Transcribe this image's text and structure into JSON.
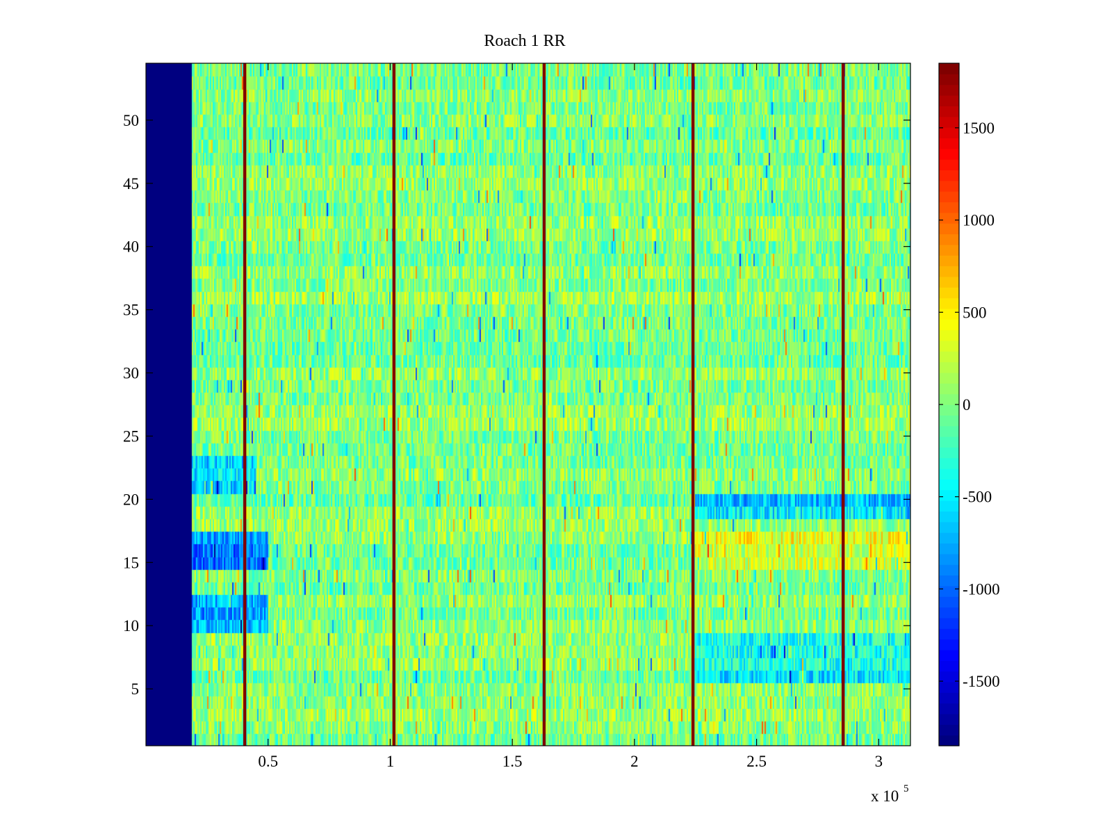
{
  "chart_data": {
    "type": "heatmap",
    "title": "Roach 1 RR",
    "xlabel": "",
    "ylabel": "",
    "x_exponent_label": "x 10",
    "x_exponent_power": "5",
    "xlim": [
      0,
      3.13
    ],
    "ylim": [
      0.5,
      54.5
    ],
    "rows": 54,
    "x_ticks": [
      {
        "value": 0.5,
        "label": "0.5"
      },
      {
        "value": 1,
        "label": "1"
      },
      {
        "value": 1.5,
        "label": "1.5"
      },
      {
        "value": 2,
        "label": "2"
      },
      {
        "value": 2.5,
        "label": "2.5"
      },
      {
        "value": 3,
        "label": "3"
      }
    ],
    "y_ticks": [
      {
        "value": 5,
        "label": "5"
      },
      {
        "value": 10,
        "label": "10"
      },
      {
        "value": 15,
        "label": "15"
      },
      {
        "value": 20,
        "label": "20"
      },
      {
        "value": 25,
        "label": "25"
      },
      {
        "value": 30,
        "label": "30"
      },
      {
        "value": 35,
        "label": "35"
      },
      {
        "value": 40,
        "label": "40"
      },
      {
        "value": 45,
        "label": "45"
      },
      {
        "value": 50,
        "label": "50"
      }
    ],
    "colorbar": {
      "colormap": "jet",
      "clim": [
        -1850,
        1850
      ],
      "ticks": [
        {
          "value": 1500,
          "label": "1500"
        },
        {
          "value": 1000,
          "label": "1000"
        },
        {
          "value": 500,
          "label": "500"
        },
        {
          "value": 0,
          "label": "0"
        },
        {
          "value": -500,
          "label": "-500"
        },
        {
          "value": -1000,
          "label": "-1000"
        },
        {
          "value": -1500,
          "label": "-1500"
        }
      ]
    },
    "blank_region": {
      "x_start": 0,
      "x_end": 0.19,
      "value": -1850
    },
    "spike_columns_x": [
      0.405,
      1.015,
      1.63,
      2.24,
      2.855
    ],
    "spike_value": 1850,
    "typical_value": 0,
    "row_patterns": [
      {
        "rows": [
          15,
          17
        ],
        "x_start": 0.19,
        "x_end": 0.5,
        "value": -900
      },
      {
        "rows": [
          10,
          12
        ],
        "x_start": 0.19,
        "x_end": 0.5,
        "value": -800
      },
      {
        "rows": [
          21,
          23
        ],
        "x_start": 0.19,
        "x_end": 0.45,
        "value": -600
      },
      {
        "rows": [
          19,
          20
        ],
        "x_start": 2.25,
        "x_end": 3.13,
        "value": -600
      },
      {
        "rows": [
          6,
          9
        ],
        "x_start": 2.25,
        "x_end": 3.13,
        "value": -450
      },
      {
        "rows": [
          15,
          17
        ],
        "x_start": 2.25,
        "x_end": 3.13,
        "value": 350
      }
    ]
  }
}
